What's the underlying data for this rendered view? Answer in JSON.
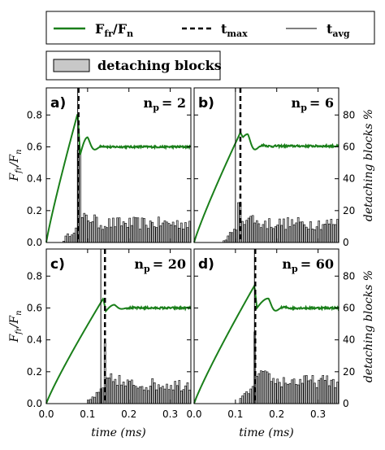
{
  "legend": {
    "items": [
      {
        "main": "F",
        "sub": "fr",
        "mid": "/F",
        "sub2": "n",
        "color": "#1a7f1a",
        "style": "solid-thick"
      },
      {
        "main": "t",
        "sub": "max",
        "color": "#000000",
        "style": "dashed"
      },
      {
        "main": "t",
        "sub": "avg",
        "color": "#000000",
        "style": "solid-thin"
      }
    ],
    "bar_item": {
      "label": "detaching blocks",
      "color": "#c8c8c8"
    }
  },
  "axes": {
    "xlabel": "time (ms)",
    "ylabel_left": "F_fr / F_n",
    "ylabel_left_main": "F",
    "ylabel_left_sub1": "fr",
    "ylabel_left_sep": "/F",
    "ylabel_left_sub2": "n",
    "ylabel_right": "detaching blocks %",
    "xlim": [
      0.0,
      0.35
    ],
    "ylim_left": [
      0.0,
      0.97
    ],
    "ylim_right": [
      0,
      97
    ],
    "xticks": [
      "0.0",
      "0.1",
      "0.2",
      "0.3"
    ],
    "xtick_values": [
      0.0,
      0.1,
      0.2,
      0.3
    ],
    "yticks_left": [
      "0.0",
      "0.2",
      "0.4",
      "0.6",
      "0.8"
    ],
    "ytick_left_values": [
      0.0,
      0.2,
      0.4,
      0.6,
      0.8
    ],
    "yticks_right": [
      "0",
      "20",
      "40",
      "60",
      "80"
    ],
    "ytick_right_values": [
      0,
      20,
      40,
      60,
      80
    ]
  },
  "colors": {
    "friction": "#1a7f1a",
    "bars": "#c8c8c8",
    "bar_edge": "#000000"
  },
  "chart_data": [
    {
      "type": "line",
      "panel": "a)",
      "np_label": "n",
      "np_sub": "p",
      "np_value": "= 2",
      "t_max": 0.078,
      "t_avg": 0.076,
      "friction": {
        "peak_t": 0.076,
        "peak_y": 0.81,
        "drop_y": 0.55,
        "rebound_t": 0.1,
        "rebound_y": 0.66,
        "steady": 0.6
      },
      "bar_peak": {
        "t": 0.08,
        "value": 58
      },
      "bar_level": 12
    },
    {
      "type": "line",
      "panel": "b)",
      "np_label": "n",
      "np_sub": "p",
      "np_value": "= 6",
      "t_max": 0.112,
      "t_avg": 0.1,
      "friction": {
        "peak_t": 0.112,
        "peak_y": 0.69,
        "drop_y": 0.66,
        "rebound_t": 0.13,
        "rebound_y": 0.68,
        "steady": 0.605
      },
      "bar_peak": {
        "t": 0.11,
        "value": 25
      },
      "bar_level": 12
    },
    {
      "type": "line",
      "panel": "c)",
      "np_label": "n",
      "np_sub": "p",
      "np_value": "= 20",
      "t_max": 0.142,
      "t_avg": 0.132,
      "friction": {
        "peak_t": 0.138,
        "peak_y": 0.66,
        "drop_y": 0.58,
        "rebound_t": 0.165,
        "rebound_y": 0.62,
        "steady": 0.6
      },
      "bar_peak": {
        "t": 0.142,
        "value": 38
      },
      "bar_level": 12
    },
    {
      "type": "line",
      "panel": "d)",
      "np_label": "n",
      "np_sub": "p",
      "np_value": "= 60",
      "t_max": 0.148,
      "t_avg": 0.146,
      "friction": {
        "peak_t": 0.146,
        "peak_y": 0.74,
        "drop_y": 0.6,
        "rebound_t": 0.18,
        "rebound_y": 0.66,
        "steady": 0.6
      },
      "bar_peak": {
        "t": 0.148,
        "value": 45
      },
      "bar_level": 14
    }
  ]
}
